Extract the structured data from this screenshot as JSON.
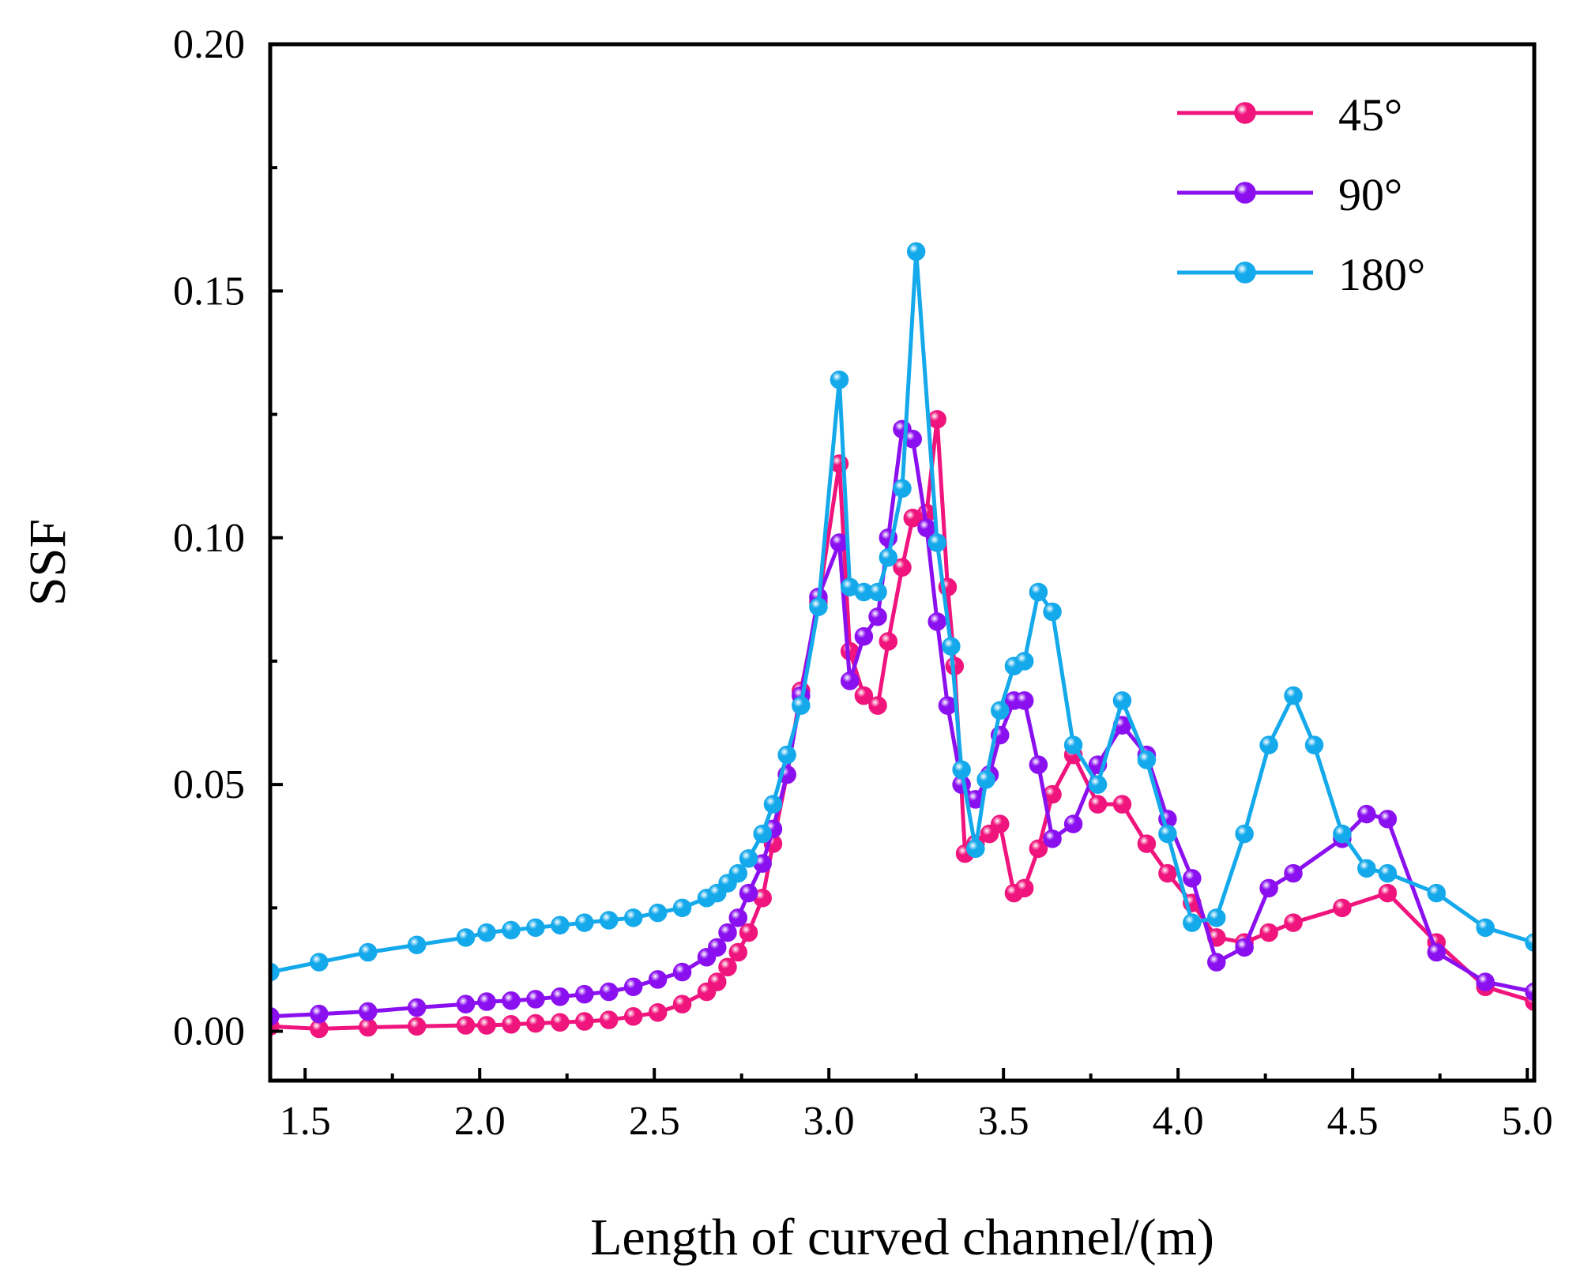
{
  "chart_data": {
    "type": "line",
    "title": "",
    "xlabel": "Length of curved channel/(m)",
    "ylabel": "SSF",
    "xlim": [
      1.4,
      5.02
    ],
    "ylim": [
      -0.01,
      0.2
    ],
    "xticks": [
      1.5,
      2.0,
      2.5,
      3.0,
      3.5,
      4.0,
      4.5,
      5.0
    ],
    "xtick_labels": [
      "1.5",
      "2.0",
      "2.5",
      "3.0",
      "3.5",
      "4.0",
      "4.5",
      "5.0"
    ],
    "yticks": [
      0.0,
      0.05,
      0.1,
      0.15,
      0.2
    ],
    "ytick_labels": [
      "0.00",
      "0.05",
      "0.10",
      "0.15",
      "0.20"
    ],
    "grid": false,
    "legend_position": "top-right",
    "series": [
      {
        "name": "45°",
        "color": "#f0147d",
        "points": [
          [
            1.4,
            0.001
          ],
          [
            1.54,
            0.0005
          ],
          [
            1.68,
            0.0008
          ],
          [
            1.82,
            0.001
          ],
          [
            1.96,
            0.0012
          ],
          [
            2.02,
            0.0012
          ],
          [
            2.09,
            0.0014
          ],
          [
            2.16,
            0.0016
          ],
          [
            2.23,
            0.0018
          ],
          [
            2.3,
            0.002
          ],
          [
            2.37,
            0.0023
          ],
          [
            2.44,
            0.003
          ],
          [
            2.51,
            0.0038
          ],
          [
            2.58,
            0.0055
          ],
          [
            2.65,
            0.008
          ],
          [
            2.68,
            0.01
          ],
          [
            2.71,
            0.013
          ],
          [
            2.74,
            0.016
          ],
          [
            2.77,
            0.02
          ],
          [
            2.81,
            0.027
          ],
          [
            2.84,
            0.038
          ],
          [
            2.88,
            0.052
          ],
          [
            2.92,
            0.069
          ],
          [
            2.97,
            0.087
          ],
          [
            3.03,
            0.115
          ],
          [
            3.06,
            0.077
          ],
          [
            3.1,
            0.068
          ],
          [
            3.14,
            0.066
          ],
          [
            3.17,
            0.079
          ],
          [
            3.21,
            0.094
          ],
          [
            3.24,
            0.104
          ],
          [
            3.28,
            0.105
          ],
          [
            3.31,
            0.124
          ],
          [
            3.34,
            0.09
          ],
          [
            3.36,
            0.074
          ],
          [
            3.39,
            0.036
          ],
          [
            3.42,
            0.038
          ],
          [
            3.46,
            0.04
          ],
          [
            3.49,
            0.042
          ],
          [
            3.53,
            0.028
          ],
          [
            3.56,
            0.029
          ],
          [
            3.6,
            0.037
          ],
          [
            3.64,
            0.048
          ],
          [
            3.7,
            0.056
          ],
          [
            3.77,
            0.046
          ],
          [
            3.84,
            0.046
          ],
          [
            3.91,
            0.038
          ],
          [
            3.97,
            0.032
          ],
          [
            4.04,
            0.026
          ],
          [
            4.11,
            0.019
          ],
          [
            4.19,
            0.018
          ],
          [
            4.26,
            0.02
          ],
          [
            4.33,
            0.022
          ],
          [
            4.47,
            0.025
          ],
          [
            4.6,
            0.028
          ],
          [
            4.74,
            0.018
          ],
          [
            4.88,
            0.009
          ],
          [
            5.02,
            0.006
          ]
        ]
      },
      {
        "name": "90°",
        "color": "#8b10f0",
        "points": [
          [
            1.4,
            0.003
          ],
          [
            1.54,
            0.0035
          ],
          [
            1.68,
            0.004
          ],
          [
            1.82,
            0.0048
          ],
          [
            1.96,
            0.0055
          ],
          [
            2.02,
            0.006
          ],
          [
            2.09,
            0.0062
          ],
          [
            2.16,
            0.0065
          ],
          [
            2.23,
            0.007
          ],
          [
            2.3,
            0.0075
          ],
          [
            2.37,
            0.008
          ],
          [
            2.44,
            0.009
          ],
          [
            2.51,
            0.0105
          ],
          [
            2.58,
            0.012
          ],
          [
            2.65,
            0.015
          ],
          [
            2.68,
            0.017
          ],
          [
            2.71,
            0.02
          ],
          [
            2.74,
            0.023
          ],
          [
            2.77,
            0.028
          ],
          [
            2.81,
            0.034
          ],
          [
            2.84,
            0.041
          ],
          [
            2.88,
            0.052
          ],
          [
            2.92,
            0.068
          ],
          [
            2.97,
            0.088
          ],
          [
            3.03,
            0.099
          ],
          [
            3.06,
            0.071
          ],
          [
            3.1,
            0.08
          ],
          [
            3.14,
            0.084
          ],
          [
            3.17,
            0.1
          ],
          [
            3.21,
            0.122
          ],
          [
            3.24,
            0.12
          ],
          [
            3.28,
            0.102
          ],
          [
            3.31,
            0.083
          ],
          [
            3.34,
            0.066
          ],
          [
            3.38,
            0.05
          ],
          [
            3.42,
            0.047
          ],
          [
            3.46,
            0.052
          ],
          [
            3.49,
            0.06
          ],
          [
            3.53,
            0.067
          ],
          [
            3.56,
            0.067
          ],
          [
            3.6,
            0.054
          ],
          [
            3.64,
            0.039
          ],
          [
            3.7,
            0.042
          ],
          [
            3.77,
            0.054
          ],
          [
            3.84,
            0.062
          ],
          [
            3.91,
            0.056
          ],
          [
            3.97,
            0.043
          ],
          [
            4.04,
            0.031
          ],
          [
            4.11,
            0.014
          ],
          [
            4.19,
            0.017
          ],
          [
            4.26,
            0.029
          ],
          [
            4.33,
            0.032
          ],
          [
            4.47,
            0.039
          ],
          [
            4.54,
            0.044
          ],
          [
            4.6,
            0.043
          ],
          [
            4.74,
            0.016
          ],
          [
            4.88,
            0.01
          ],
          [
            5.02,
            0.008
          ]
        ]
      },
      {
        "name": "180°",
        "color": "#14a9eb",
        "points": [
          [
            1.4,
            0.012
          ],
          [
            1.54,
            0.014
          ],
          [
            1.68,
            0.016
          ],
          [
            1.82,
            0.0175
          ],
          [
            1.96,
            0.019
          ],
          [
            2.02,
            0.02
          ],
          [
            2.09,
            0.0205
          ],
          [
            2.16,
            0.021
          ],
          [
            2.23,
            0.0215
          ],
          [
            2.3,
            0.022
          ],
          [
            2.37,
            0.0225
          ],
          [
            2.44,
            0.023
          ],
          [
            2.51,
            0.024
          ],
          [
            2.58,
            0.025
          ],
          [
            2.65,
            0.027
          ],
          [
            2.68,
            0.028
          ],
          [
            2.71,
            0.03
          ],
          [
            2.74,
            0.032
          ],
          [
            2.77,
            0.035
          ],
          [
            2.81,
            0.04
          ],
          [
            2.84,
            0.046
          ],
          [
            2.88,
            0.056
          ],
          [
            2.92,
            0.066
          ],
          [
            2.97,
            0.086
          ],
          [
            3.03,
            0.132
          ],
          [
            3.06,
            0.09
          ],
          [
            3.1,
            0.089
          ],
          [
            3.14,
            0.089
          ],
          [
            3.17,
            0.096
          ],
          [
            3.21,
            0.11
          ],
          [
            3.25,
            0.158
          ],
          [
            3.31,
            0.099
          ],
          [
            3.35,
            0.078
          ],
          [
            3.38,
            0.053
          ],
          [
            3.42,
            0.037
          ],
          [
            3.45,
            0.051
          ],
          [
            3.49,
            0.065
          ],
          [
            3.53,
            0.074
          ],
          [
            3.56,
            0.075
          ],
          [
            3.6,
            0.089
          ],
          [
            3.64,
            0.085
          ],
          [
            3.7,
            0.058
          ],
          [
            3.77,
            0.05
          ],
          [
            3.84,
            0.067
          ],
          [
            3.91,
            0.055
          ],
          [
            3.97,
            0.04
          ],
          [
            4.04,
            0.022
          ],
          [
            4.11,
            0.023
          ],
          [
            4.19,
            0.04
          ],
          [
            4.26,
            0.058
          ],
          [
            4.33,
            0.068
          ],
          [
            4.39,
            0.058
          ],
          [
            4.47,
            0.04
          ],
          [
            4.54,
            0.033
          ],
          [
            4.6,
            0.032
          ],
          [
            4.74,
            0.028
          ],
          [
            4.88,
            0.021
          ],
          [
            5.02,
            0.018
          ]
        ]
      }
    ]
  }
}
